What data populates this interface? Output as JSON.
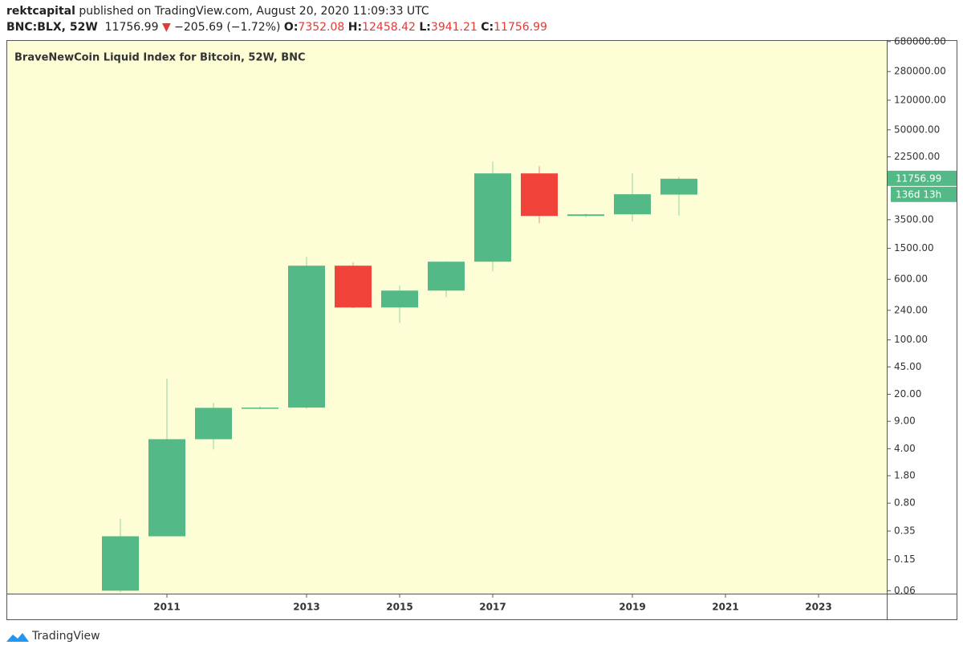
{
  "header": {
    "author": "rektcapital",
    "published": "published on TradingView.com, August 20, 2020 11:09:33 UTC",
    "brand": "TradingView"
  },
  "chart_data": {
    "type": "candlestick",
    "symbol": "BNC:BLX, 52W",
    "title": "BraveNewCoin Liquid Index for Bitcoin, 52W, BNC",
    "change_arrow": "▼",
    "change": "−205.69 (−1.72%)",
    "ohlc_labels": [
      "O:",
      "H:",
      "L:",
      "C:"
    ],
    "countdown": "136d 13h",
    "categories": [
      null,
      "2011",
      null,
      null,
      "2013",
      null,
      "2015",
      null,
      "2017",
      null,
      null,
      "2019",
      null,
      "2021",
      null,
      "2023"
    ],
    "open": [
      0.06,
      0.3,
      5.3,
      13.4,
      13.5,
      898,
      261,
      430,
      1011,
      13770,
      3910,
      4100,
      7352.08,
      null,
      null,
      null
    ],
    "high": [
      0.5,
      32,
      15.5,
      14,
      1166,
      987,
      497,
      1020,
      19640,
      17050,
      4200,
      13800,
      12458.42,
      null,
      null,
      null
    ],
    "low": [
      0.057,
      0.3,
      3.9,
      12.8,
      13,
      255,
      166,
      356,
      760,
      3160,
      3750,
      3310,
      3941.21,
      null,
      null,
      null
    ],
    "close": [
      0.3,
      5.3,
      13.4,
      13.5,
      898,
      261,
      430,
      1011,
      13770,
      3910,
      4100,
      7430,
      11756.99,
      null,
      null,
      null
    ],
    "up_color": "#53b987",
    "down_color": "#f2433a",
    "log_scale": true,
    "ylim": [
      0.055,
      710000
    ],
    "yticks": [
      0.06,
      0.15,
      0.35,
      {
        "value": 0.8,
        "label": "0.80"
      },
      {
        "value": 1.8,
        "label": "1.80"
      },
      {
        "value": 4,
        "label": "4.00"
      },
      {
        "value": 9,
        "label": "9.00"
      },
      {
        "value": 20,
        "label": "20.00"
      },
      {
        "value": 45,
        "label": "45.00"
      },
      {
        "value": 100,
        "label": "100.00"
      },
      {
        "value": 240,
        "label": "240.00"
      },
      {
        "value": 600,
        "label": "600.00"
      },
      {
        "value": 1500,
        "label": "1500.00"
      },
      {
        "value": 3500,
        "label": "3500.00"
      },
      {
        "value": 22500,
        "label": "22500.00"
      },
      {
        "value": 50000,
        "label": "50000.00"
      },
      {
        "value": 120000,
        "label": "120000.00"
      },
      {
        "value": 280000,
        "label": "280000.00"
      },
      {
        "value": 680000,
        "label": "680000.00"
      }
    ]
  }
}
